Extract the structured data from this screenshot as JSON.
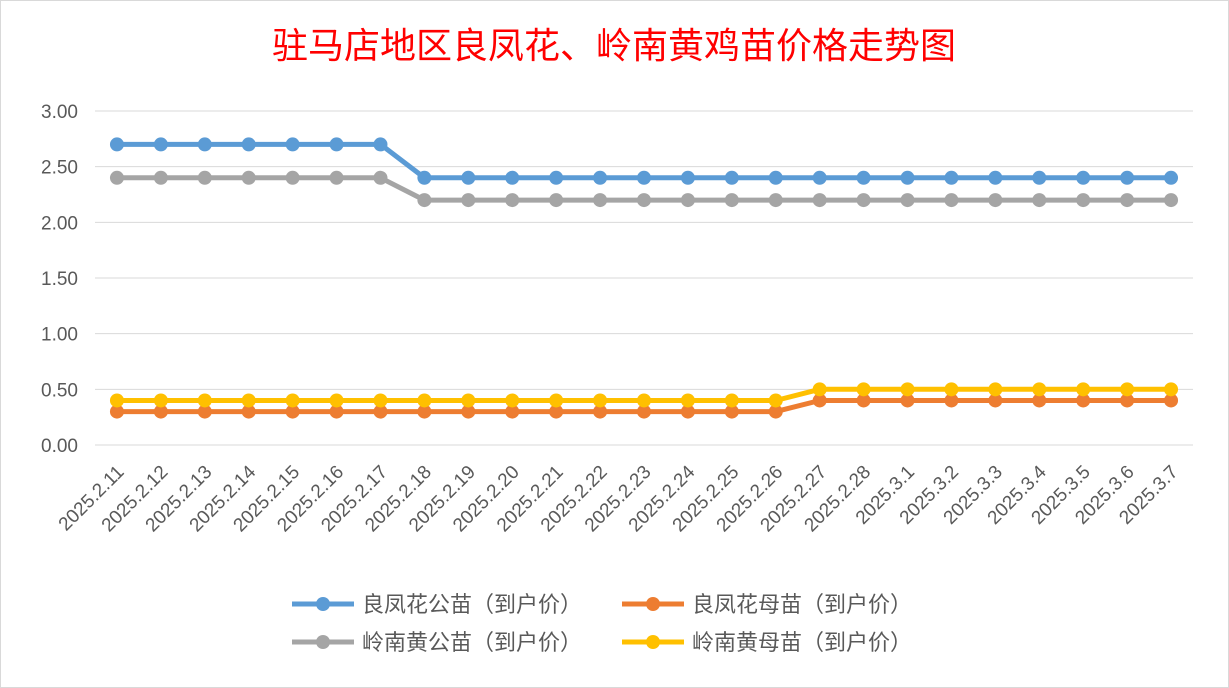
{
  "chart_data": {
    "type": "line",
    "title": "驻马店地区良凤花、岭南黄鸡苗价格走势图",
    "xlabel": "",
    "ylabel": "",
    "ylim": [
      0,
      3
    ],
    "yticks": [
      "0.00",
      "0.50",
      "1.00",
      "1.50",
      "2.00",
      "2.50",
      "3.00"
    ],
    "grid": true,
    "legend_position": "bottom",
    "categories": [
      "2025.2.11",
      "2025.2.12",
      "2025.2.13",
      "2025.2.14",
      "2025.2.15",
      "2025.2.16",
      "2025.2.17",
      "2025.2.18",
      "2025.2.19",
      "2025.2.20",
      "2025.2.21",
      "2025.2.22",
      "2025.2.23",
      "2025.2.24",
      "2025.2.25",
      "2025.2.26",
      "2025.2.27",
      "2025.2.28",
      "2025.3.1",
      "2025.3.2",
      "2025.3.3",
      "2025.3.4",
      "2025.3.5",
      "2025.3.6",
      "2025.3.7"
    ],
    "series": [
      {
        "name": "良凤花公苗（到户价）",
        "color": "#5b9bd5",
        "values": [
          2.7,
          2.7,
          2.7,
          2.7,
          2.7,
          2.7,
          2.7,
          2.4,
          2.4,
          2.4,
          2.4,
          2.4,
          2.4,
          2.4,
          2.4,
          2.4,
          2.4,
          2.4,
          2.4,
          2.4,
          2.4,
          2.4,
          2.4,
          2.4,
          2.4
        ]
      },
      {
        "name": "良凤花母苗（到户价）",
        "color": "#ed7d31",
        "values": [
          0.3,
          0.3,
          0.3,
          0.3,
          0.3,
          0.3,
          0.3,
          0.3,
          0.3,
          0.3,
          0.3,
          0.3,
          0.3,
          0.3,
          0.3,
          0.3,
          0.4,
          0.4,
          0.4,
          0.4,
          0.4,
          0.4,
          0.4,
          0.4,
          0.4
        ]
      },
      {
        "name": "岭南黄公苗（到户价）",
        "color": "#a5a5a5",
        "values": [
          2.4,
          2.4,
          2.4,
          2.4,
          2.4,
          2.4,
          2.4,
          2.2,
          2.2,
          2.2,
          2.2,
          2.2,
          2.2,
          2.2,
          2.2,
          2.2,
          2.2,
          2.2,
          2.2,
          2.2,
          2.2,
          2.2,
          2.2,
          2.2,
          2.2
        ]
      },
      {
        "name": "岭南黄母苗（到户价）",
        "color": "#ffc000",
        "values": [
          0.4,
          0.4,
          0.4,
          0.4,
          0.4,
          0.4,
          0.4,
          0.4,
          0.4,
          0.4,
          0.4,
          0.4,
          0.4,
          0.4,
          0.4,
          0.4,
          0.5,
          0.5,
          0.5,
          0.5,
          0.5,
          0.5,
          0.5,
          0.5,
          0.5
        ]
      }
    ],
    "colors": {
      "title": "#ff0000",
      "text": "#595959",
      "grid": "#d9d9d9"
    }
  }
}
